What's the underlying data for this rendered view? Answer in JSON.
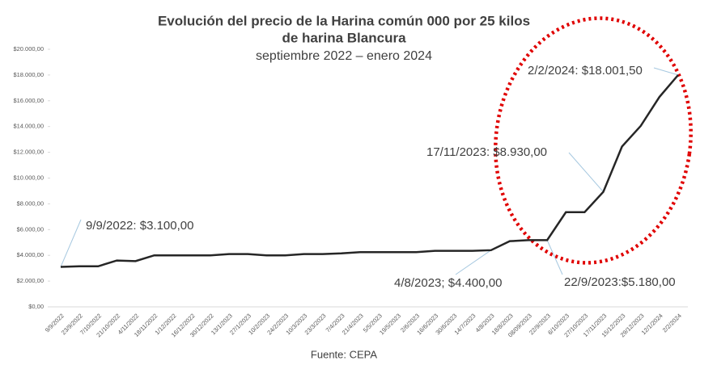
{
  "chart_data": {
    "type": "line",
    "title": "Evolución del precio de la Harina común 000 por 25 kilos",
    "title_line2": "de harina Blancura",
    "subtitle": "septiembre 2022 – enero 2024",
    "source": "Fuente: CEPA",
    "categories": [
      "9/9/2022",
      "23/9/2022",
      "7/10/2022",
      "21/10/2022",
      "4/11/2022",
      "18/11/2022",
      "1/12/2022",
      "16/12/2022",
      "30/12/2022",
      "13/1/2023",
      "27/1/2023",
      "10/2/2023",
      "24/2/2023",
      "10/3/2023",
      "23/3/2023",
      "7/4/2023",
      "21/4/2023",
      "5/5/2023",
      "19/5/2023",
      "2/6/2023",
      "16/6/2023",
      "30/6/2023",
      "14/7/2023",
      "4/8/2023",
      "18/8/2023",
      "08/09/2023",
      "22/9/2023",
      "6/10/2023",
      "27/10/2023",
      "17/11/2023",
      "15/12/2023",
      "29/12/2023",
      "12/1/2024",
      "2/2/2024"
    ],
    "series": [
      {
        "name": "Precio",
        "color": "#262626",
        "values": [
          3100,
          3150,
          3150,
          3600,
          3550,
          4000,
          4000,
          4000,
          4000,
          4100,
          4100,
          4000,
          4000,
          4100,
          4100,
          4150,
          4250,
          4250,
          4250,
          4250,
          4350,
          4350,
          4350,
          4400,
          5100,
          5180,
          5180,
          7350,
          7350,
          8930,
          12450,
          14050,
          16300,
          18001.5
        ]
      }
    ],
    "ylim": [
      0,
      20000
    ],
    "yticks": [
      {
        "value": 0,
        "label": "$0,00"
      },
      {
        "value": 2000,
        "label": "$2.000,00"
      },
      {
        "value": 4000,
        "label": "$4.000,00"
      },
      {
        "value": 6000,
        "label": "$6.000,00"
      },
      {
        "value": 8000,
        "label": "$8.000,00"
      },
      {
        "value": 10000,
        "label": "$10.000,00"
      },
      {
        "value": 12000,
        "label": "$12.000,00"
      },
      {
        "value": 14000,
        "label": "$14.000,00"
      },
      {
        "value": 16000,
        "label": "$16.000,00"
      },
      {
        "value": 18000,
        "label": "$18.000,00"
      },
      {
        "value": 20000,
        "label": "$20.000,00"
      }
    ],
    "grid": false,
    "annotations": [
      {
        "text": "9/9/2022: $3.100,00"
      },
      {
        "text": "4/8/2023; $4.400,00"
      },
      {
        "text": "22/9/2023:$5.180,00"
      },
      {
        "text": "17/11/2023: $8.930,00"
      },
      {
        "text": "2/2/2024: $18.001,50"
      }
    ]
  }
}
